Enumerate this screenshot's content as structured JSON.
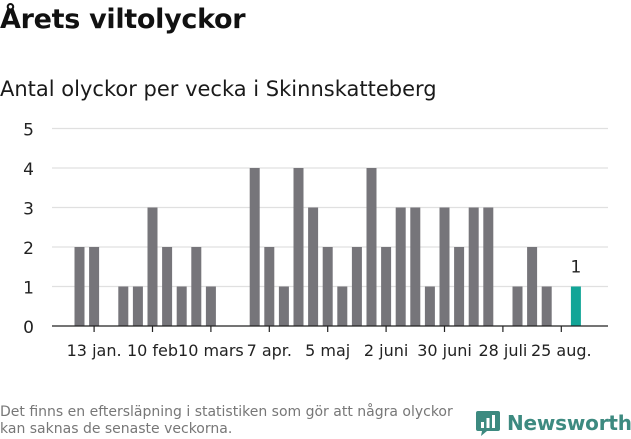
{
  "title": "Årets viltolyckor",
  "subtitle": "Antal olyckor per vecka i Skinnskatteberg",
  "footnote": "Det finns en eftersläpning i statistiken som gör att några olyckor kan saknas de senaste veckorna.",
  "brand": {
    "name": "Newsworthy",
    "icon": "newsworthy-logo-icon",
    "color": "#3d8a80"
  },
  "chart_data": {
    "type": "bar",
    "title": "Antal olyckor per vecka i Skinnskatteberg",
    "xlabel": "",
    "ylabel": "",
    "ylim": [
      0,
      5
    ],
    "yticks": [
      "0",
      "1",
      "2",
      "3",
      "4",
      "5"
    ],
    "grid": true,
    "colors": {
      "default": "#76757a",
      "highlight": "#12a597"
    },
    "series": [
      {
        "values": [
          2,
          2,
          0,
          1,
          1,
          3,
          2,
          1,
          2,
          1,
          0,
          0,
          4,
          2,
          1,
          4,
          3,
          2,
          1,
          2,
          4,
          2,
          3,
          3,
          1,
          3,
          2,
          3,
          3,
          0,
          1,
          2,
          1,
          0,
          1
        ]
      }
    ],
    "highlight_index": 34,
    "annotations": [
      {
        "index": 34,
        "text": "1"
      }
    ],
    "xtick_labels": [
      {
        "index": 1,
        "label": "13 jan."
      },
      {
        "index": 5,
        "label": "10 feb"
      },
      {
        "index": 9,
        "label": "10 mars"
      },
      {
        "index": 13,
        "label": "7 apr."
      },
      {
        "index": 17,
        "label": "5 maj"
      },
      {
        "index": 21,
        "label": "2 juni"
      },
      {
        "index": 25,
        "label": "30 juni"
      },
      {
        "index": 29,
        "label": "28 juli"
      },
      {
        "index": 33,
        "label": "25 aug."
      }
    ]
  }
}
